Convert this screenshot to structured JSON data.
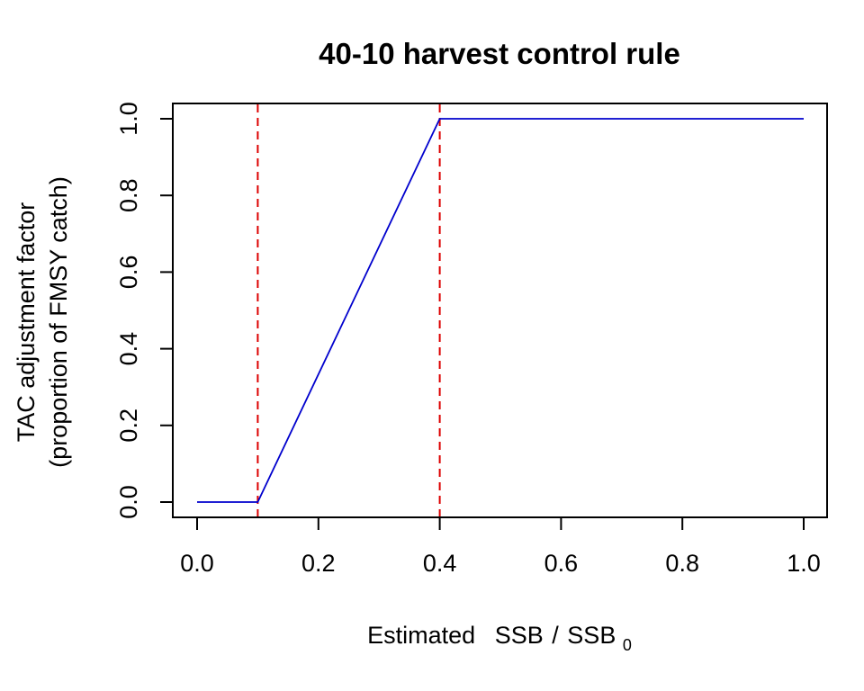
{
  "chart_data": {
    "type": "line",
    "title": "40-10 harvest control rule",
    "xlabel": {
      "prefix": "Estimated",
      "numerator": "SSB",
      "denominator": "SSB",
      "denominator_subscript": "0"
    },
    "ylabel": [
      "TAC adjustment factor",
      "(proportion of FMSY catch)"
    ],
    "xlim": [
      0.0,
      1.0
    ],
    "ylim": [
      0.0,
      1.0
    ],
    "x_ticks": [
      "0.0",
      "0.2",
      "0.4",
      "0.6",
      "0.8",
      "1.0"
    ],
    "y_ticks": [
      "0.0",
      "0.2",
      "0.4",
      "0.6",
      "0.8",
      "1.0"
    ],
    "grid": false,
    "series": [
      {
        "color": "#0000cd",
        "x": [
          0.0,
          0.1,
          0.4,
          1.0
        ],
        "y": [
          0.0,
          0.0,
          1.0,
          1.0
        ]
      }
    ],
    "reference_lines": [
      {
        "orientation": "vertical",
        "x": 0.1,
        "color": "#dd0000",
        "style": "dashed"
      },
      {
        "orientation": "vertical",
        "x": 0.4,
        "color": "#dd0000",
        "style": "dashed"
      }
    ]
  }
}
